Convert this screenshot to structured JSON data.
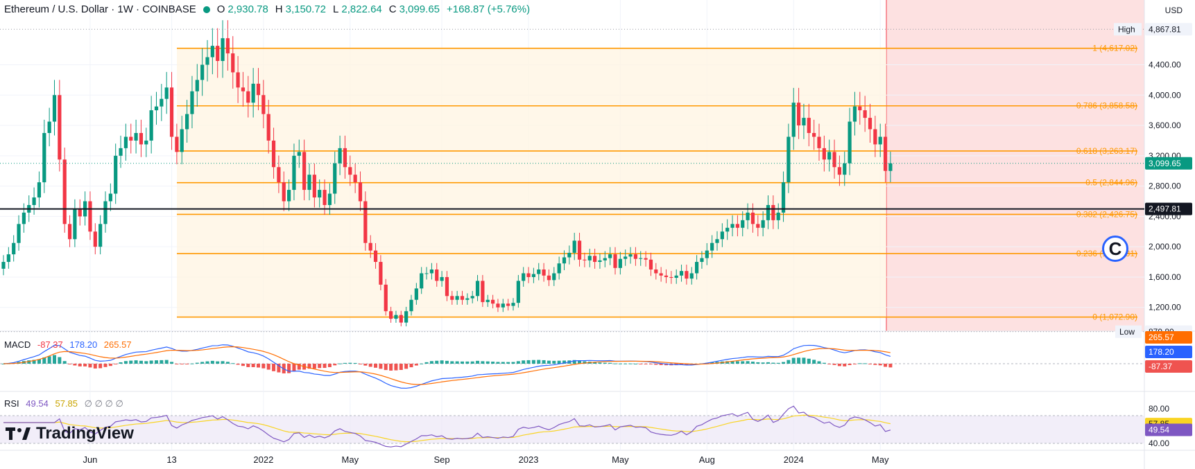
{
  "header": {
    "symbol": "Ethereum / U.S. Dollar · 1W · COINBASE",
    "o_label": "O",
    "o_value": "2,930.78",
    "h_label": "H",
    "h_value": "3,150.72",
    "l_label": "L",
    "l_value": "2,822.64",
    "c_label": "C",
    "c_value": "3,099.65",
    "change": "+168.87 (+5.76%)"
  },
  "currency_label": "USD",
  "brand": {
    "name": "TradingView",
    "badge_letter": "C"
  },
  "colors": {
    "up": "#089981",
    "down": "#f23645",
    "fib": "#ff9800",
    "macd": "#2962ff",
    "signal": "#ff6d00",
    "rsi": "#7e57c2",
    "rsi_ma": "#f9d423"
  },
  "indicators": {
    "macd": {
      "label": "MACD",
      "hist": "-87.37",
      "macd": "178.20",
      "signal": "265.57"
    },
    "rsi": {
      "label": "RSI",
      "value": "49.54",
      "ma": "57.85",
      "extra": "∅ ∅ ∅ ∅"
    }
  },
  "chart_data": {
    "type": "candlestick",
    "title": "Ethereum / U.S. Dollar · 1W · COINBASE",
    "price_axis": {
      "range": [
        960,
        4980
      ],
      "ticks": [
        "4,400.00",
        "4,000.00",
        "3,600.00",
        "3,200.00",
        "2,800.00",
        "2,400.00",
        "2,000.00",
        "1,600.00",
        "1,200.00"
      ],
      "tick_values": [
        4400,
        4000,
        3600,
        3200,
        2800,
        2400,
        2000,
        1600,
        1200
      ]
    },
    "time_axis": {
      "labels": [
        "Jun",
        "13",
        "2022",
        "May",
        "Sep",
        "2023",
        "May",
        "Aug",
        "2024",
        "May"
      ],
      "label_weeks": [
        17,
        33,
        51,
        68,
        86,
        103,
        121,
        138,
        155,
        172
      ]
    },
    "high": {
      "label": "High",
      "value": "4,867.81"
    },
    "low": {
      "label": "Low",
      "value": "879.80"
    },
    "last_price": "3,099.65",
    "horizontal_level": "2,497.81",
    "fib_levels": [
      {
        "ratio": "1",
        "price": 4617.02,
        "label": "1 (4,617.02)"
      },
      {
        "ratio": "0.786",
        "price": 3858.58,
        "label": "0.786 (3,858.58)"
      },
      {
        "ratio": "0.618",
        "price": 3263.17,
        "label": "0.618 (3,263.17)"
      },
      {
        "ratio": "0.5",
        "price": 2844.96,
        "label": "0.5 (2,844.96)"
      },
      {
        "ratio": "0.382",
        "price": 2426.75,
        "label": "0.382 (2,426.75)"
      },
      {
        "ratio": "0.236",
        "price": 1909.31,
        "label": "0.236 (1,909.31)"
      },
      {
        "ratio": "0",
        "price": 1072.9,
        "label": "0 (1,072.90)"
      }
    ],
    "weekly_close": [
      1800,
      1900,
      2050,
      2300,
      2450,
      2550,
      2650,
      2850,
      3500,
      3650,
      4000,
      3150,
      2300,
      2100,
      2500,
      2400,
      2600,
      2200,
      2000,
      2300,
      2600,
      2700,
      3200,
      3300,
      3450,
      3400,
      3500,
      3350,
      3400,
      3800,
      3850,
      3950,
      4100,
      3450,
      3250,
      3550,
      3750,
      4050,
      4200,
      4400,
      4500,
      4650,
      4450,
      4750,
      4550,
      4300,
      4100,
      4050,
      3900,
      4150,
      4000,
      3750,
      3400,
      3050,
      2850,
      2600,
      2750,
      3200,
      3250,
      2750,
      2950,
      2650,
      2750,
      2550,
      2700,
      3100,
      3300,
      3050,
      2950,
      2850,
      2600,
      2050,
      1950,
      1800,
      1500,
      1150,
      1050,
      1100,
      1000,
      1150,
      1300,
      1450,
      1650,
      1650,
      1700,
      1550,
      1600,
      1350,
      1300,
      1350,
      1300,
      1320,
      1350,
      1550,
      1270,
      1300,
      1250,
      1200,
      1250,
      1220,
      1260,
      1550,
      1650,
      1600,
      1640,
      1700,
      1620,
      1560,
      1650,
      1780,
      1860,
      1920,
      2080,
      1830,
      1820,
      1880,
      1800,
      1820,
      1850,
      1900,
      1720,
      1840,
      1870,
      1900,
      1840,
      1850,
      1830,
      1700,
      1650,
      1620,
      1600,
      1590,
      1620,
      1680,
      1580,
      1650,
      1800,
      1850,
      1950,
      2050,
      2100,
      2200,
      2250,
      2300,
      2250,
      2350,
      2450,
      2300,
      2250,
      2350,
      2550,
      2350,
      2450,
      2850,
      3450,
      3900,
      3600,
      3700,
      3500,
      3450,
      3300,
      3150,
      3250,
      3050,
      2950,
      3100,
      3650,
      3850,
      3800,
      3700,
      3550,
      3350,
      3450,
      3000,
      3099.65
    ],
    "macd_panel": {
      "labels": [
        "265.57",
        "178.20",
        "-87.37"
      ]
    },
    "rsi_panel": {
      "ticks": [
        "80.00",
        "40.00"
      ],
      "labels": [
        "57.85",
        "49.54"
      ]
    }
  }
}
